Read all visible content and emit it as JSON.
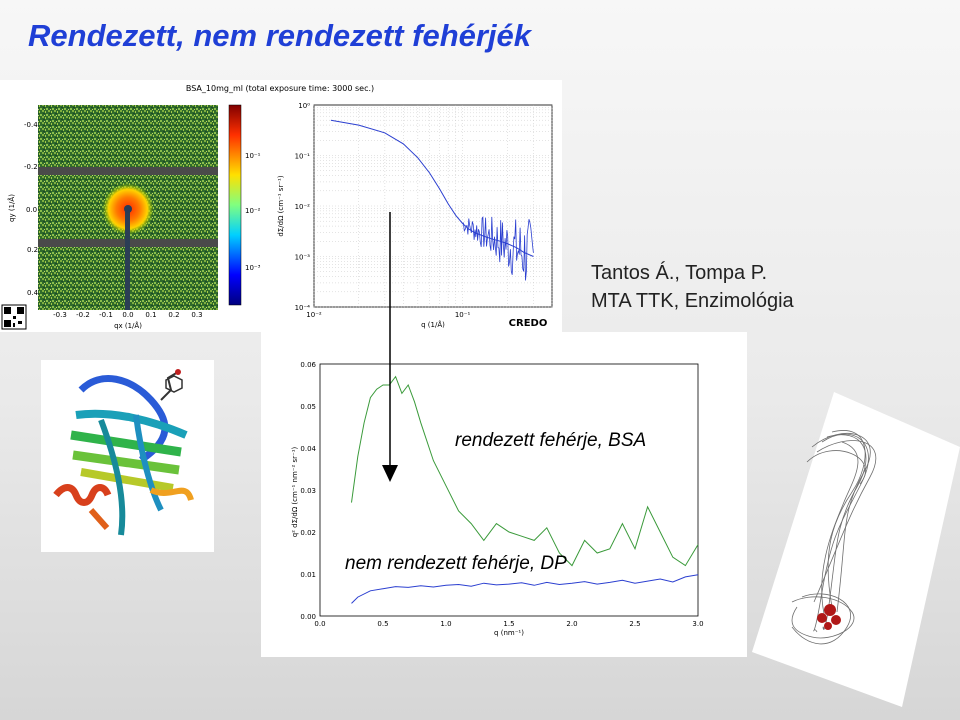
{
  "title": "Rendezett, nem rendezett fehérjék",
  "credit": {
    "line1": "Tantos Á., Tompa P.",
    "line2": "MTA  TTK, Enzimológia"
  },
  "labels": {
    "ordered": "rendezett  fehérje, BSA",
    "disordered": "nem rendezett  fehérje, DP"
  },
  "colors": {
    "title": "#1f3fd6",
    "green_curve": "#3a9a3a",
    "blue_curve": "#2b3fd0"
  },
  "saxs_panel": {
    "title": "BSA_10mg_ml (total exposure time: 3000 sec.)",
    "logo": "CREDO",
    "detector": {
      "x_label": "qx (1/Å)",
      "y_label": "qy (1/Å)",
      "x_ticks": [
        "-0.3",
        "-0.2",
        "-0.1",
        "0.0",
        "0.1",
        "0.2",
        "0.3"
      ],
      "y_ticks": [
        "-0.4",
        "-0.2",
        "0.0",
        "0.2",
        "0.4"
      ]
    },
    "colorbar_ticks": [
      "10⁻¹",
      "10⁻²",
      "10⁻³"
    ]
  },
  "chart_data": [
    {
      "type": "line",
      "scale": "log-log",
      "xlabel": "q (1/Å)",
      "ylabel": "dΣ/dΩ (cm⁻¹ sr⁻¹)",
      "x_ticks": [
        "10⁻²",
        "10⁻¹"
      ],
      "y_ticks": [
        "10⁰",
        "10⁻¹",
        "10⁻²",
        "10⁻³",
        "10⁻⁴"
      ],
      "xlim": [
        0.01,
        0.4
      ],
      "ylim": [
        0.0001,
        1
      ],
      "grid": true,
      "series": [
        {
          "x": [
            0.013,
            0.02,
            0.03,
            0.04,
            0.05,
            0.06,
            0.07,
            0.08,
            0.09,
            0.1,
            0.11,
            0.12,
            0.14,
            0.16,
            0.18,
            0.2,
            0.23,
            0.26,
            0.3
          ],
          "y": [
            0.5,
            0.4,
            0.28,
            0.17,
            0.09,
            0.045,
            0.022,
            0.011,
            0.0065,
            0.0045,
            0.0035,
            0.003,
            0.0025,
            0.0022,
            0.002,
            0.0018,
            0.0015,
            0.0012,
            0.001
          ]
        }
      ]
    },
    {
      "type": "line",
      "xlabel": "q (nm⁻¹)",
      "ylabel": "q² dΣ/dΩ (cm⁻¹ nm⁻² sr⁻¹)",
      "x_ticks": [
        "0.0",
        "0.5",
        "1.0",
        "1.5",
        "2.0",
        "2.5",
        "3.0"
      ],
      "y_ticks": [
        "0.00",
        "0.01",
        "0.02",
        "0.03",
        "0.04",
        "0.05",
        "0.06"
      ],
      "xlim": [
        0,
        3
      ],
      "ylim": [
        0,
        0.06
      ],
      "grid": false,
      "series": [
        {
          "x": [
            0.25,
            0.3,
            0.35,
            0.4,
            0.45,
            0.5,
            0.55,
            0.6,
            0.65,
            0.7,
            0.75,
            0.8,
            0.9,
            1.0,
            1.1,
            1.2,
            1.3,
            1.4,
            1.5,
            1.6,
            1.7,
            1.8,
            1.9,
            2.0,
            2.1,
            2.2,
            2.3,
            2.4,
            2.5,
            2.6,
            2.7,
            2.8,
            2.9,
            3.0
          ],
          "y": [
            0.027,
            0.038,
            0.046,
            0.052,
            0.054,
            0.055,
            0.055,
            0.057,
            0.053,
            0.055,
            0.051,
            0.046,
            0.037,
            0.031,
            0.025,
            0.022,
            0.018,
            0.022,
            0.02,
            0.019,
            0.018,
            0.021,
            0.015,
            0.012,
            0.018,
            0.015,
            0.016,
            0.022,
            0.016,
            0.026,
            0.02,
            0.014,
            0.012,
            0.017
          ]
        },
        {
          "x": [
            0.25,
            0.3,
            0.4,
            0.5,
            0.6,
            0.7,
            0.8,
            0.9,
            1.0,
            1.1,
            1.2,
            1.3,
            1.4,
            1.5,
            1.6,
            1.7,
            1.8,
            1.9,
            2.0,
            2.1,
            2.2,
            2.3,
            2.4,
            2.5,
            2.6,
            2.7,
            2.8,
            2.9,
            3.0
          ],
          "y": [
            0.003,
            0.0045,
            0.006,
            0.0065,
            0.007,
            0.0068,
            0.0072,
            0.0069,
            0.0073,
            0.0075,
            0.0071,
            0.0078,
            0.0074,
            0.0076,
            0.0079,
            0.0073,
            0.008,
            0.0075,
            0.0078,
            0.0082,
            0.0076,
            0.008,
            0.0085,
            0.0078,
            0.0083,
            0.0088,
            0.0081,
            0.0093,
            0.0098
          ]
        }
      ]
    }
  ]
}
